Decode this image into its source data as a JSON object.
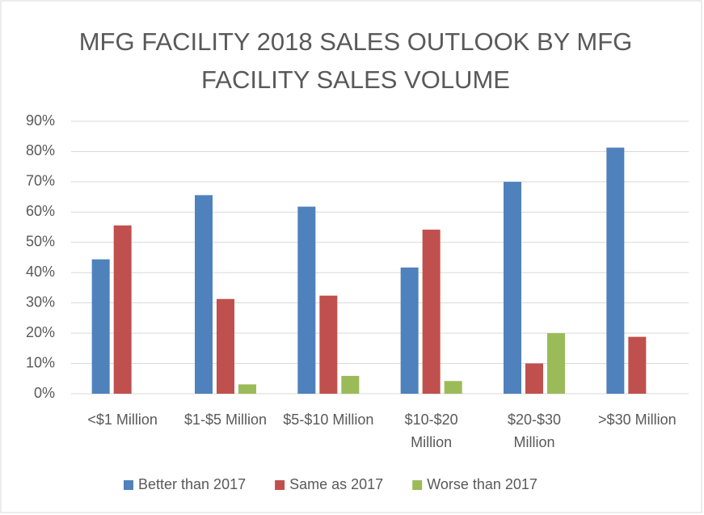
{
  "chart_data": {
    "type": "bar",
    "title": "MFG FACILITY 2018 SALES OUTLOOK BY MFG FACILITY SALES VOLUME",
    "categories": [
      "<$1 Million",
      "$1-$5 Million",
      "$5-$10 Million",
      "$10-$20 Million",
      "$20-$30 Million",
      ">$30 Million"
    ],
    "series": [
      {
        "name": "Better than 2017",
        "color": "#4f81bd",
        "values": [
          44.4,
          65.6,
          61.8,
          41.7,
          70,
          81.3
        ]
      },
      {
        "name": "Same as 2017",
        "color": "#c0504d",
        "values": [
          55.6,
          31.3,
          32.4,
          54.2,
          10,
          18.8
        ]
      },
      {
        "name": "Worse than 2017",
        "color": "#9bbb59",
        "values": [
          0,
          3.1,
          5.9,
          4.2,
          20,
          0
        ]
      }
    ],
    "ylim": [
      0,
      90
    ],
    "yticks": [
      {
        "value": 0,
        "label": "0%"
      },
      {
        "value": 10,
        "label": "10%"
      },
      {
        "value": 20,
        "label": "20%"
      },
      {
        "value": 30,
        "label": "30%"
      },
      {
        "value": 40,
        "label": "40%"
      },
      {
        "value": 50,
        "label": "50%"
      },
      {
        "value": 60,
        "label": "60%"
      },
      {
        "value": 70,
        "label": "70%"
      },
      {
        "value": 80,
        "label": "80%"
      },
      {
        "value": 90,
        "label": "90%"
      }
    ],
    "grid": true,
    "legend": "bottom"
  }
}
